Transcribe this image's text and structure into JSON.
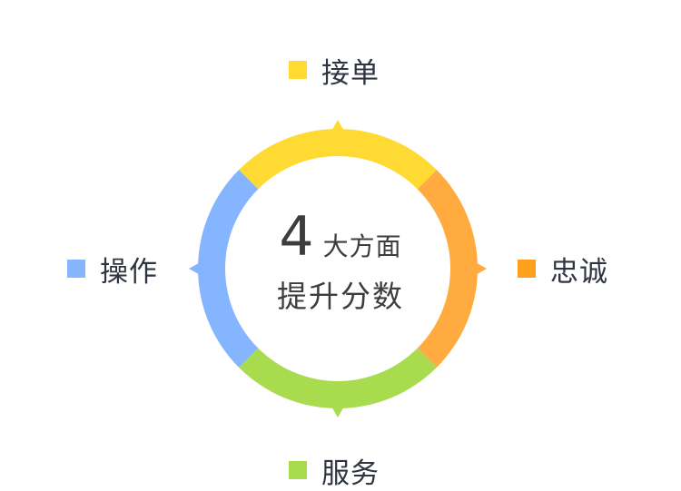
{
  "center": {
    "number": "4",
    "line1_text": "大方面",
    "line2": "提升分数"
  },
  "segments": [
    {
      "label": "接单",
      "color": "#FFDA33",
      "position": "top"
    },
    {
      "label": "忠诚",
      "color": "#FFAB40",
      "position": "right"
    },
    {
      "label": "服务",
      "color": "#A8DB4E",
      "position": "bottom"
    },
    {
      "label": "操作",
      "color": "#86B5FF",
      "position": "left"
    }
  ],
  "legend_colors": {
    "top": "#FFDA33",
    "right": "#FF9F1E",
    "bottom": "#A8DB4E",
    "left": "#86B5FF"
  }
}
